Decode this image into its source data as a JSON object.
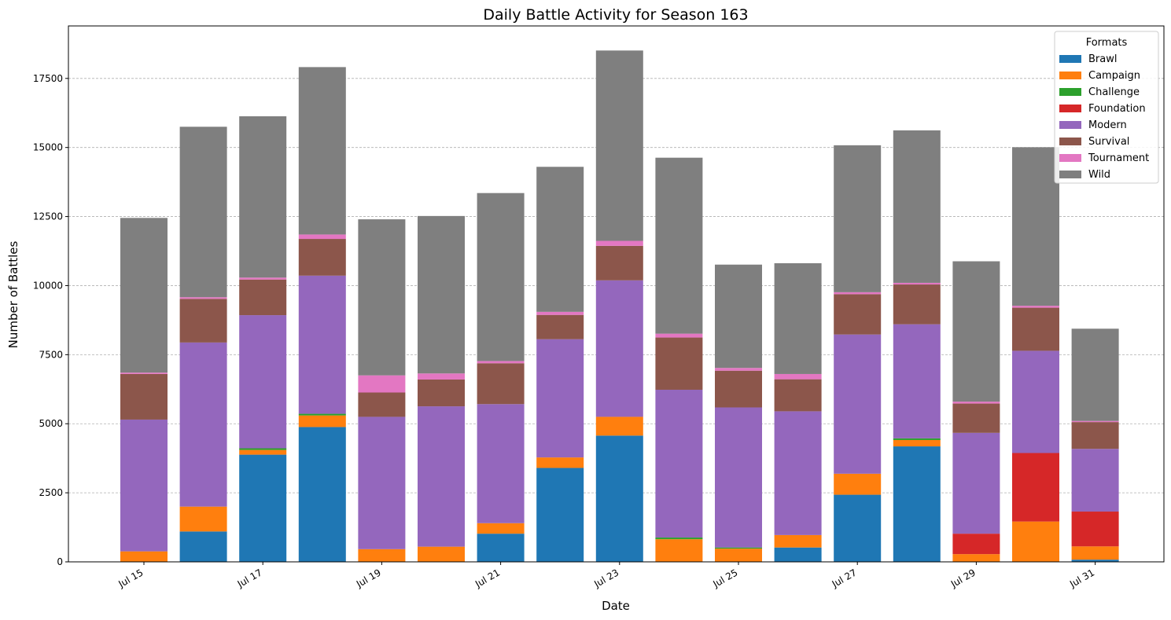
{
  "chart_data": {
    "type": "bar",
    "stacked": true,
    "title": "Daily Battle Activity for Season 163",
    "xlabel": "Date",
    "ylabel": "Number of Battles",
    "ylim": [
      0,
      19400
    ],
    "yticks": [
      0,
      2500,
      5000,
      7500,
      10000,
      12500,
      15000,
      17500
    ],
    "grid": "y-dashed",
    "legend_title": "Formats",
    "legend_position": "top-right",
    "categories": [
      "Jul 15",
      "Jul 16",
      "Jul 17",
      "Jul 18",
      "Jul 19",
      "Jul 20",
      "Jul 21",
      "Jul 22",
      "Jul 23",
      "Jul 24",
      "Jul 25",
      "Jul 26",
      "Jul 27",
      "Jul 28",
      "Jul 29",
      "Jul 30",
      "Jul 31"
    ],
    "x_tick_labels": [
      "Jul 15",
      "",
      "Jul 17",
      "",
      "Jul 19",
      "",
      "Jul 21",
      "",
      "Jul 23",
      "",
      "Jul 25",
      "",
      "Jul 27",
      "",
      "Jul 29",
      "",
      "Jul 31"
    ],
    "series": [
      {
        "name": "Brawl",
        "color": "#1f77b4",
        "values": [
          0,
          1100,
          3880,
          4880,
          0,
          0,
          1020,
          3400,
          4570,
          0,
          0,
          520,
          2430,
          4180,
          0,
          0,
          80
        ]
      },
      {
        "name": "Campaign",
        "color": "#ff7f0e",
        "values": [
          380,
          900,
          170,
          420,
          460,
          550,
          380,
          380,
          680,
          820,
          480,
          450,
          760,
          230,
          280,
          1460,
          480
        ]
      },
      {
        "name": "Challenge",
        "color": "#2ca02c",
        "values": [
          0,
          0,
          60,
          60,
          0,
          0,
          0,
          0,
          0,
          60,
          40,
          0,
          0,
          60,
          0,
          0,
          0
        ]
      },
      {
        "name": "Foundation",
        "color": "#d62728",
        "values": [
          0,
          0,
          0,
          0,
          0,
          0,
          0,
          0,
          0,
          0,
          0,
          0,
          0,
          0,
          740,
          2480,
          1260
        ]
      },
      {
        "name": "Modern",
        "color": "#9467bd",
        "values": [
          4770,
          5940,
          4820,
          5000,
          4790,
          5080,
          4310,
          4280,
          4940,
          5350,
          5070,
          4480,
          5040,
          4130,
          3650,
          3700,
          2270
        ]
      },
      {
        "name": "Survival",
        "color": "#8c564b",
        "values": [
          1650,
          1580,
          1290,
          1330,
          880,
          970,
          1480,
          880,
          1250,
          1890,
          1330,
          1160,
          1460,
          1440,
          1060,
          1560,
          970
        ]
      },
      {
        "name": "Tournament",
        "color": "#e377c2",
        "values": [
          50,
          60,
          70,
          160,
          620,
          220,
          80,
          110,
          180,
          140,
          100,
          190,
          70,
          60,
          70,
          70,
          40
        ]
      },
      {
        "name": "Wild",
        "color": "#7f7f7f",
        "values": [
          5600,
          6170,
          5840,
          6060,
          5650,
          5700,
          6080,
          5250,
          6890,
          6370,
          3740,
          4010,
          5320,
          5520,
          5080,
          5740,
          3340
        ]
      }
    ]
  }
}
